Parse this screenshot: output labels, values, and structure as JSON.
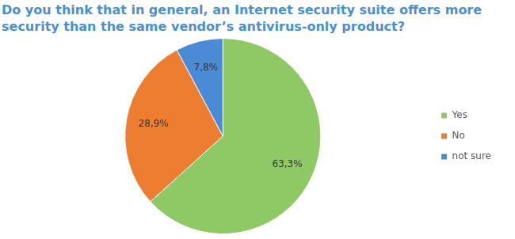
{
  "chart_data": {
    "type": "pie",
    "title": "Do you think that in general, an Internet security suite offers more security than the same vendor’s antivirus-only product?",
    "categories": [
      "Yes",
      "No",
      "not sure"
    ],
    "values": [
      63.3,
      28.9,
      7.8
    ],
    "value_labels": [
      "63,3%",
      "28,9%",
      "7,8%"
    ],
    "colors": [
      "#8fc965",
      "#ed7d31",
      "#4b8bd6"
    ],
    "legend": "right",
    "data_labels": true
  }
}
